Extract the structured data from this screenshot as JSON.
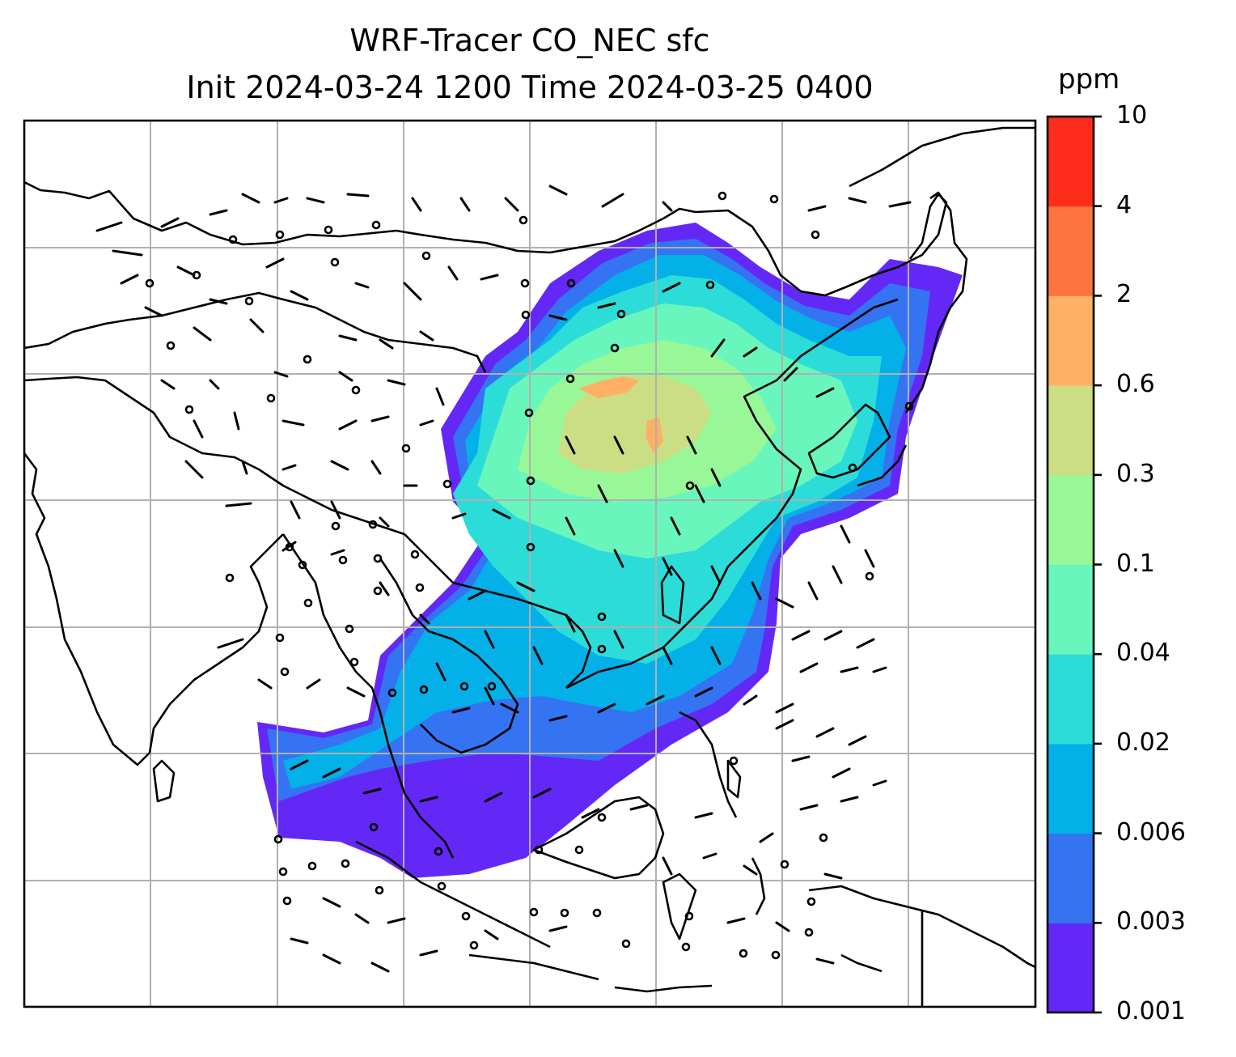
{
  "title": {
    "line1": "WRF-Tracer CO_NEC sfc",
    "line2": "Init 2024-03-24 1200 Time 2024-03-25 0400"
  },
  "colorbar": {
    "unit": "ppm",
    "levels": [
      "0.001",
      "0.003",
      "0.006",
      "0.02",
      "0.04",
      "0.1",
      "0.3",
      "0.6",
      "2",
      "4",
      "10"
    ],
    "colors": [
      "#6428f6",
      "#3474f2",
      "#04b0e8",
      "#2cdcd8",
      "#68f6bc",
      "#98f898",
      "#ccde84",
      "#feb066",
      "#fe7440",
      "#fe2c1a"
    ]
  },
  "map": {
    "gridlines": true,
    "coastline_color": "#000000",
    "grid_color": "#b0b0b0",
    "wind_barbs": "black",
    "calm_marker": "circle"
  }
}
